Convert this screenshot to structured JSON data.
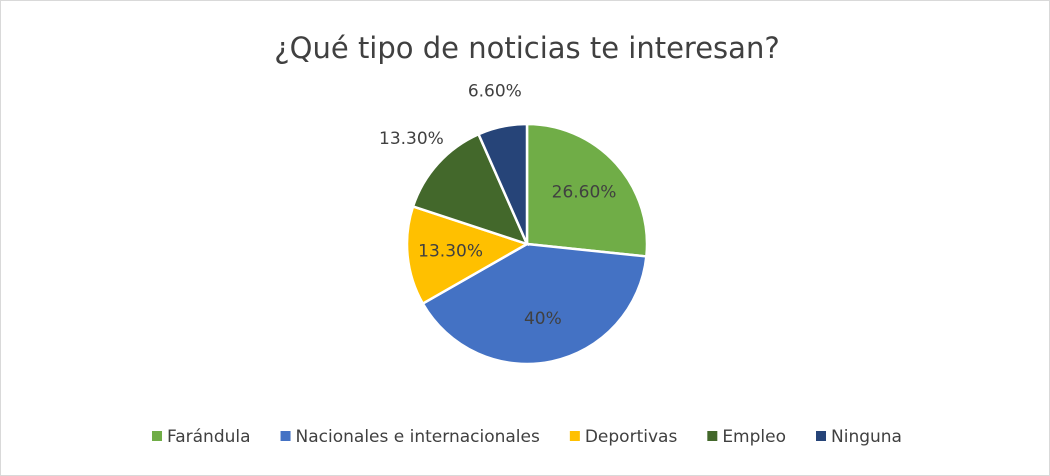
{
  "chart_data": {
    "type": "pie",
    "title": "¿Qué tipo de noticias te interesan?",
    "categories": [
      "Farándula",
      "Nacionales e internacionales",
      "Deportivas",
      "Empleo",
      "Ninguna"
    ],
    "values": [
      26.6,
      40,
      13.3,
      13.3,
      6.6
    ],
    "value_labels": [
      "26.60%",
      "40%",
      "13.30%",
      "13.30%",
      "6.60%"
    ],
    "colors": [
      "#70ad47",
      "#4472c4",
      "#ffc000",
      "#43682b",
      "#264478"
    ],
    "legend": "bottom"
  }
}
